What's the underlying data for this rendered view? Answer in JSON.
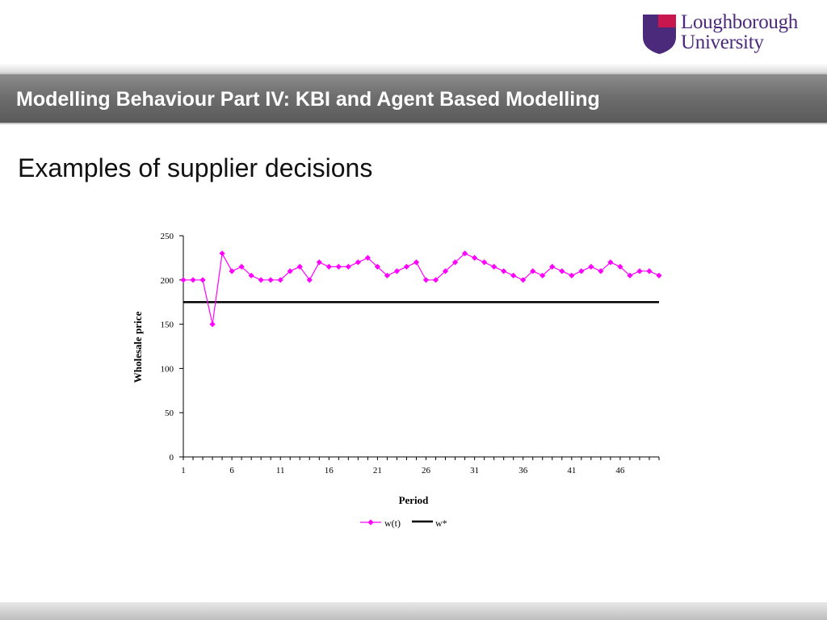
{
  "logo": {
    "line1": "Loughborough",
    "line2": "University"
  },
  "header": {
    "title": "Modelling Behaviour Part IV: KBI and Agent Based Modelling"
  },
  "slide": {
    "title": "Examples of supplier decisions"
  },
  "colors": {
    "series_wt": "#ff00ff",
    "series_wstar": "#000000",
    "banner": "#6e6e6e",
    "logo_purple": "#4b2a7b",
    "logo_crimson": "#c8174f"
  },
  "chart_data": {
    "type": "line",
    "xlabel": "Period",
    "ylabel": "Wholesale price",
    "ylim": [
      0,
      250
    ],
    "xlim": [
      1,
      50
    ],
    "yticks": [
      0,
      50,
      100,
      150,
      200,
      250
    ],
    "xticks": [
      1,
      6,
      11,
      16,
      21,
      26,
      31,
      36,
      41,
      46
    ],
    "legend_position": "bottom",
    "series": [
      {
        "name": "w(t)",
        "x": [
          1,
          2,
          3,
          4,
          5,
          6,
          7,
          8,
          9,
          10,
          11,
          12,
          13,
          14,
          15,
          16,
          17,
          18,
          19,
          20,
          21,
          22,
          23,
          24,
          25,
          26,
          27,
          28,
          29,
          30,
          31,
          32,
          33,
          34,
          35,
          36,
          37,
          38,
          39,
          40,
          41,
          42,
          43,
          44,
          45,
          46,
          47,
          48,
          49,
          50
        ],
        "values": [
          200,
          200,
          200,
          150,
          230,
          210,
          215,
          205,
          200,
          200,
          200,
          210,
          215,
          200,
          220,
          215,
          215,
          215,
          220,
          225,
          215,
          205,
          210,
          215,
          220,
          200,
          200,
          210,
          220,
          230,
          225,
          220,
          215,
          210,
          205,
          200,
          210,
          205,
          215,
          210,
          205,
          210,
          215,
          210,
          220,
          215,
          205,
          210,
          210,
          205
        ]
      },
      {
        "name": "w*",
        "x": [
          1,
          50
        ],
        "values": [
          175,
          175
        ]
      }
    ]
  }
}
